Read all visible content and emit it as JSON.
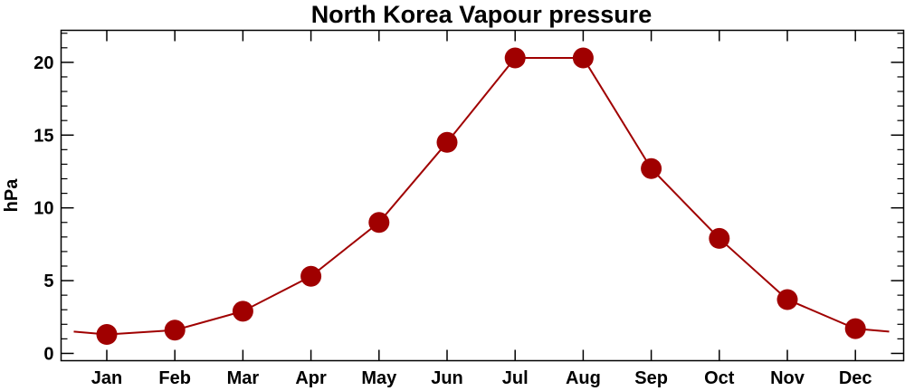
{
  "chart_data": {
    "type": "line",
    "title": "North Korea Vapour pressure",
    "xlabel": "",
    "ylabel": "hPa",
    "categories": [
      "Jan",
      "Feb",
      "Mar",
      "Apr",
      "May",
      "Jun",
      "Jul",
      "Aug",
      "Sep",
      "Oct",
      "Nov",
      "Dec"
    ],
    "series": [
      {
        "values": [
          1.3,
          1.6,
          2.9,
          5.3,
          9.0,
          14.5,
          20.3,
          20.3,
          12.7,
          7.9,
          3.7,
          1.7
        ],
        "color": "#a00000"
      }
    ],
    "ylim": [
      -0.5,
      22.2
    ],
    "yticks": [
      0,
      5,
      10,
      15,
      20
    ],
    "wrap_edges": true,
    "grid": false,
    "legend": "none"
  }
}
